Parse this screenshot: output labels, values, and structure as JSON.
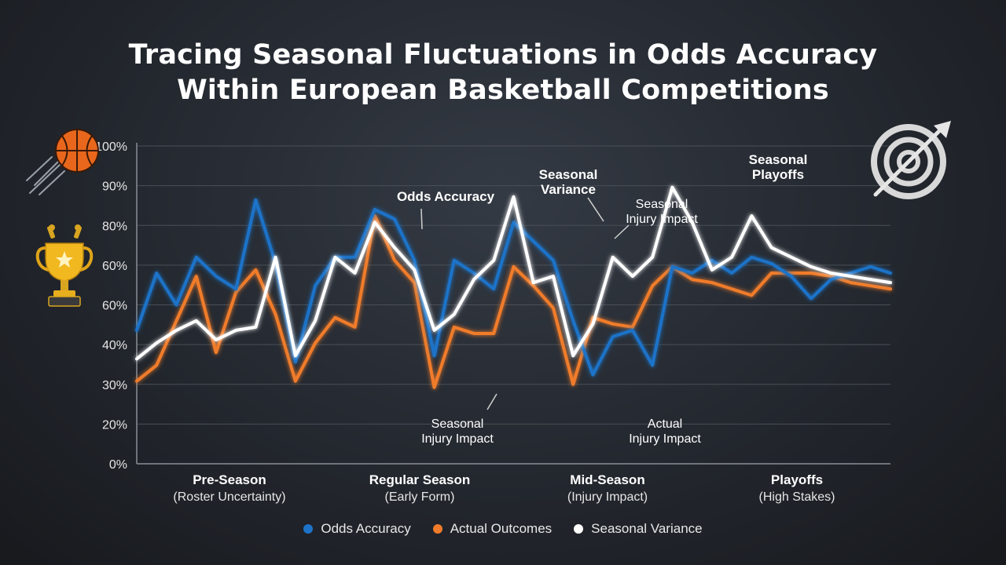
{
  "title_line1": "Tracing Seasonal Fluctuations in Odds Accuracy",
  "title_line2": "Within European Basketball Competitions",
  "colors": {
    "odds": "#1e73c8",
    "actual": "#f07b2a",
    "variance": "#ffffff",
    "grid": "#4a4f57"
  },
  "icons": [
    "basketball-icon",
    "trophy-icon",
    "target-arrow-icon"
  ],
  "chart_data": {
    "type": "line",
    "ylim": [
      0,
      100
    ],
    "y_ticks": [
      "0%",
      "20%",
      "30%",
      "40%",
      "60%",
      "60%",
      "80%",
      "90%",
      "100%"
    ],
    "grid": true,
    "legend_position": "bottom-center",
    "phases": [
      {
        "name": "Pre-Season",
        "sub": "(Roster Uncertainty)"
      },
      {
        "name": "Regular Season",
        "sub": "(Early Form)"
      },
      {
        "name": "Mid-Season",
        "sub": "(Injury Impact)"
      },
      {
        "name": "Playoffs",
        "sub": "(High Stakes)"
      }
    ],
    "x": [
      0,
      1,
      2,
      3,
      4,
      5,
      6,
      7,
      8,
      9,
      10,
      11,
      12,
      13,
      14,
      15,
      16,
      17,
      18,
      19,
      20,
      21,
      22,
      23,
      24,
      25,
      26,
      27,
      28,
      29,
      30,
      31,
      32,
      33,
      34,
      35,
      36,
      37,
      38
    ],
    "series": [
      {
        "name": "Odds Accuracy",
        "color_key": "odds",
        "values": [
          42,
          60,
          50,
          65,
          59,
          55,
          83,
          63,
          32,
          56,
          65,
          65,
          80,
          77,
          64,
          34,
          64,
          60,
          55,
          76,
          70,
          64,
          45,
          28,
          40,
          42,
          31,
          62,
          60,
          64,
          60,
          65,
          63,
          59,
          52,
          58,
          60,
          62,
          60
        ]
      },
      {
        "name": "Actual Outcomes",
        "color_key": "actual",
        "values": [
          26,
          31,
          45,
          59,
          35,
          54,
          61,
          47,
          26,
          38,
          46,
          43,
          78,
          64,
          57,
          24,
          43,
          41,
          41,
          62,
          56,
          49,
          25,
          46,
          44,
          43,
          56,
          62,
          58,
          57,
          55,
          53,
          60,
          60,
          60,
          59,
          57,
          56,
          55
        ]
      },
      {
        "name": "Seasonal Variance",
        "color_key": "variance",
        "values": [
          33,
          38,
          42,
          45,
          39,
          42,
          43,
          65,
          34,
          45,
          65,
          60,
          76,
          68,
          61,
          42,
          47,
          58,
          64,
          84,
          57,
          59,
          34,
          44,
          65,
          59,
          65,
          87,
          76,
          61,
          65,
          78,
          68,
          65,
          62,
          60,
          59,
          58,
          57
        ]
      }
    ],
    "annotations": [
      {
        "text": [
          "Odds Accuracy"
        ],
        "bold": true
      },
      {
        "text": [
          "Seasonal",
          "Variance"
        ],
        "bold": true
      },
      {
        "text": [
          "Seasonal",
          "Injury Impact"
        ],
        "bold": false
      },
      {
        "text": [
          "Seasonal",
          "Playoffs"
        ],
        "bold": true
      },
      {
        "text": [
          "Seasonal",
          "Injury Impact"
        ],
        "bold": false
      },
      {
        "text": [
          "Actual",
          "Injury Impact"
        ],
        "bold": false
      }
    ]
  }
}
